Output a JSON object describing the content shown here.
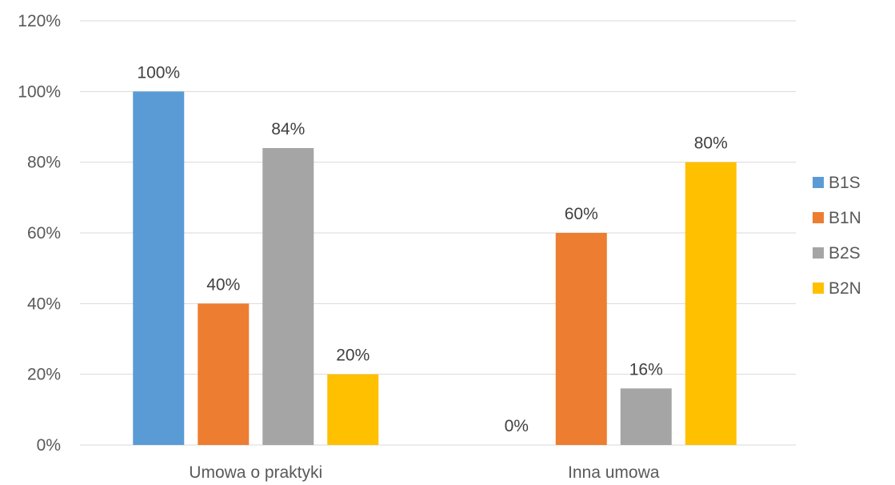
{
  "chart_data": {
    "type": "bar",
    "categories": [
      "Umowa o praktyki",
      "Inna umowa"
    ],
    "series": [
      {
        "name": "B1S",
        "values": [
          100,
          0
        ],
        "value_labels": [
          "100%",
          "0%"
        ],
        "color": "#5b9bd5"
      },
      {
        "name": "B1N",
        "values": [
          40,
          60
        ],
        "value_labels": [
          "40%",
          "60%"
        ],
        "color": "#ed7d31"
      },
      {
        "name": "B2S",
        "values": [
          84,
          16
        ],
        "value_labels": [
          "84%",
          "16%"
        ],
        "color": "#a5a5a5"
      },
      {
        "name": "B2N",
        "values": [
          20,
          80
        ],
        "value_labels": [
          "20%",
          "80%"
        ],
        "color": "#ffc000"
      }
    ],
    "y_ticks": [
      0,
      20,
      40,
      60,
      80,
      100,
      120
    ],
    "y_tick_labels": [
      "0%",
      "20%",
      "40%",
      "60%",
      "80%",
      "100%",
      "120%"
    ],
    "ylim": [
      0,
      120
    ],
    "title": "",
    "xlabel": "",
    "ylabel": "",
    "grid": true,
    "legend_position": "right"
  }
}
